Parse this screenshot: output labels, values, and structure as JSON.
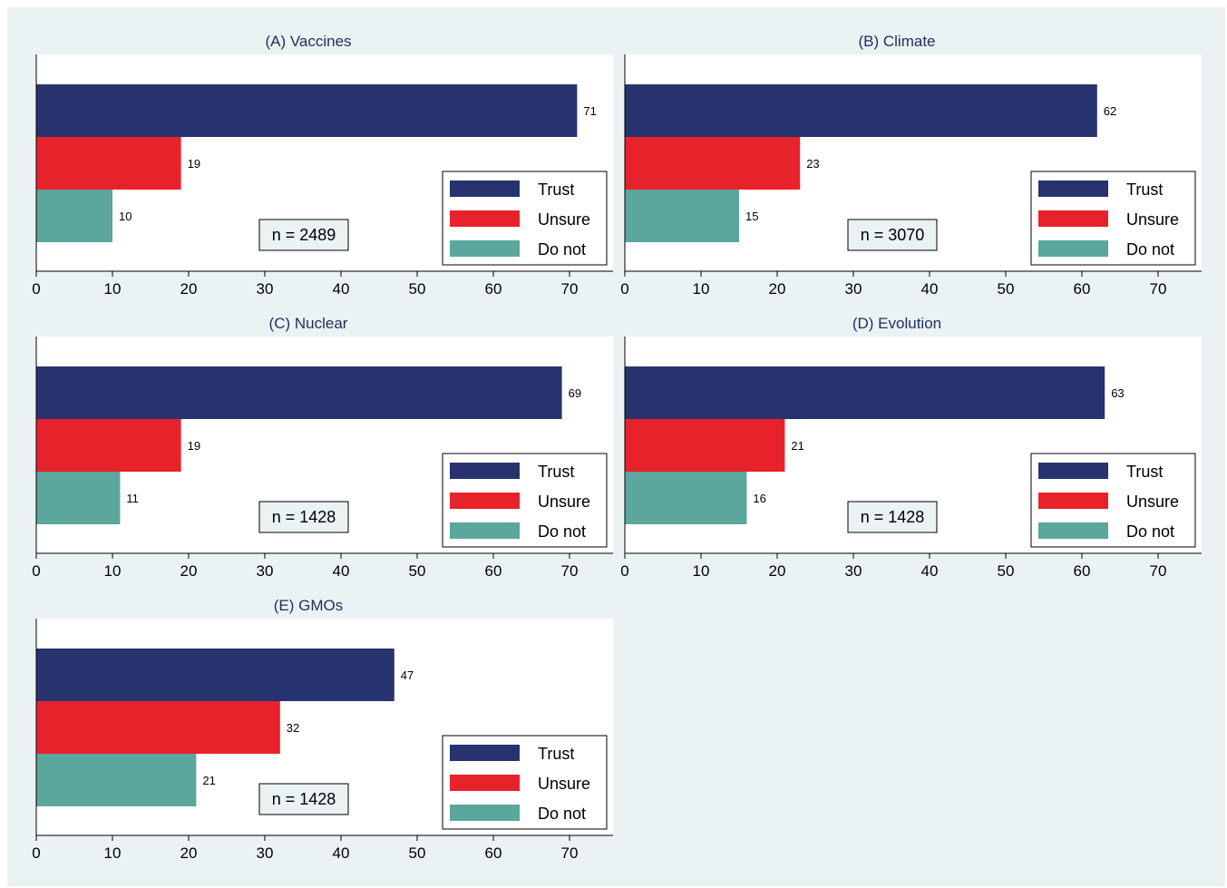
{
  "chart_data": [
    {
      "type": "bar",
      "orientation": "horizontal",
      "title": "(A) Vaccines",
      "categories": [
        "Trust",
        "Unsure",
        "Do not"
      ],
      "values": [
        71,
        19,
        10
      ],
      "n_label": "n = 2489",
      "xlim": [
        0,
        75
      ],
      "xticks": [
        0,
        10,
        20,
        30,
        40,
        50,
        60,
        70
      ],
      "legend": [
        "Trust",
        "Unsure",
        "Do not"
      ],
      "legend_position": "bottom-right",
      "grid": false
    },
    {
      "type": "bar",
      "orientation": "horizontal",
      "title": "(B) Climate",
      "categories": [
        "Trust",
        "Unsure",
        "Do not"
      ],
      "values": [
        62,
        23,
        15
      ],
      "n_label": "n = 3070",
      "xlim": [
        0,
        75
      ],
      "xticks": [
        0,
        10,
        20,
        30,
        40,
        50,
        60,
        70
      ],
      "legend": [
        "Trust",
        "Unsure",
        "Do not"
      ],
      "legend_position": "bottom-right",
      "grid": false
    },
    {
      "type": "bar",
      "orientation": "horizontal",
      "title": "(C) Nuclear",
      "categories": [
        "Trust",
        "Unsure",
        "Do not"
      ],
      "values": [
        69,
        19,
        11
      ],
      "n_label": "n = 1428",
      "xlim": [
        0,
        75
      ],
      "xticks": [
        0,
        10,
        20,
        30,
        40,
        50,
        60,
        70
      ],
      "legend": [
        "Trust",
        "Unsure",
        "Do not"
      ],
      "legend_position": "bottom-right",
      "grid": false
    },
    {
      "type": "bar",
      "orientation": "horizontal",
      "title": "(D) Evolution",
      "categories": [
        "Trust",
        "Unsure",
        "Do not"
      ],
      "values": [
        63,
        21,
        16
      ],
      "n_label": "n = 1428",
      "xlim": [
        0,
        75
      ],
      "xticks": [
        0,
        10,
        20,
        30,
        40,
        50,
        60,
        70
      ],
      "legend": [
        "Trust",
        "Unsure",
        "Do not"
      ],
      "legend_position": "bottom-right",
      "grid": false
    },
    {
      "type": "bar",
      "orientation": "horizontal",
      "title": "(E) GMOs",
      "categories": [
        "Trust",
        "Unsure",
        "Do not"
      ],
      "values": [
        47,
        32,
        21
      ],
      "n_label": "n = 1428",
      "xlim": [
        0,
        75
      ],
      "xticks": [
        0,
        10,
        20,
        30,
        40,
        50,
        60,
        70
      ],
      "legend": [
        "Trust",
        "Unsure",
        "Do not"
      ],
      "legend_position": "bottom-right",
      "grid": false
    }
  ],
  "colors": {
    "trust": "#26336e",
    "unsure": "#e8222b",
    "do_not": "#5ba69d",
    "background": "#eaf2f3",
    "plot_area": "#ffffff",
    "title": "#1f2e5e",
    "n_box": "#eaf2f3"
  }
}
